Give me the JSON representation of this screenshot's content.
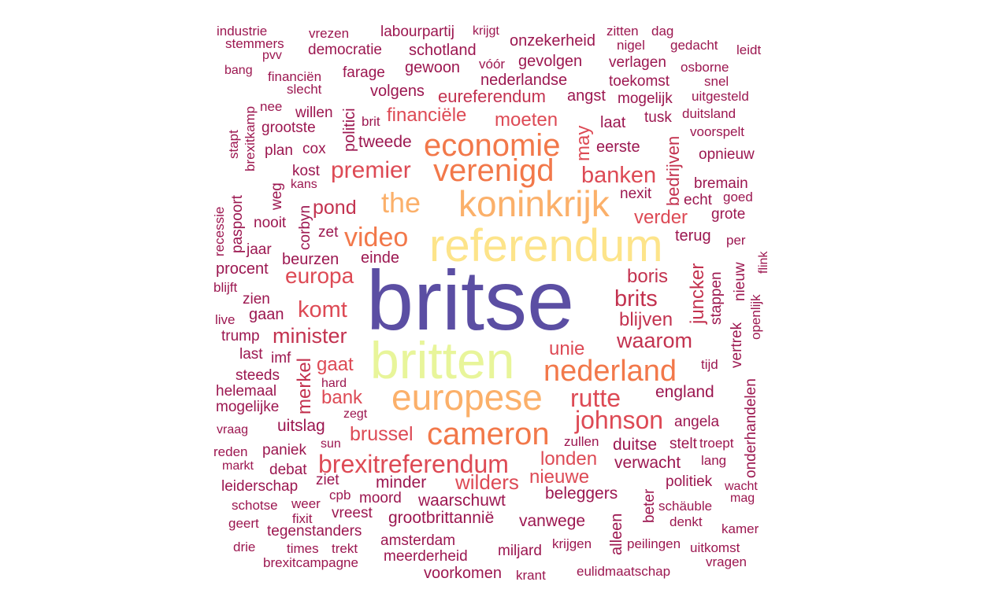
{
  "palette": {
    "purple": "#5b4ea3",
    "yellow": "#fde48a",
    "lime": "#e8f59a",
    "peach": "#fbb06a",
    "orange": "#f2784a",
    "red": "#dd4a55",
    "crimson": "#c3324f",
    "maroon": "#9c1750"
  },
  "words": [
    {
      "text": "britse",
      "color": "purple"
    },
    {
      "text": "referendum",
      "color": "yellow"
    },
    {
      "text": "britten",
      "color": "lime"
    },
    {
      "text": "koninkrijk",
      "color": "peach"
    },
    {
      "text": "europese",
      "color": "peach"
    },
    {
      "text": "economie",
      "color": "orange"
    },
    {
      "text": "verenigd",
      "color": "orange"
    },
    {
      "text": "cameron",
      "color": "orange"
    },
    {
      "text": "the",
      "color": "peach"
    },
    {
      "text": "nederland",
      "color": "orange"
    },
    {
      "text": "video",
      "color": "orange"
    },
    {
      "text": "premier",
      "color": "red"
    },
    {
      "text": "brexitreferendum",
      "color": "red"
    },
    {
      "text": "johnson",
      "color": "red"
    },
    {
      "text": "rutte",
      "color": "red"
    },
    {
      "text": "komt",
      "color": "red"
    },
    {
      "text": "europa",
      "color": "red"
    },
    {
      "text": "banken",
      "color": "red"
    },
    {
      "text": "minister",
      "color": "crimson"
    },
    {
      "text": "brits",
      "color": "crimson"
    },
    {
      "text": "waarom",
      "color": "crimson"
    },
    {
      "text": "wilders",
      "color": "red"
    },
    {
      "text": "brussel",
      "color": "red"
    },
    {
      "text": "pond",
      "color": "crimson"
    },
    {
      "text": "blijven",
      "color": "crimson"
    },
    {
      "text": "boris",
      "color": "crimson"
    },
    {
      "text": "financiële",
      "color": "red"
    },
    {
      "text": "moeten",
      "color": "red"
    },
    {
      "text": "gaat",
      "color": "red"
    },
    {
      "text": "bank",
      "color": "red"
    },
    {
      "text": "londen",
      "color": "red"
    },
    {
      "text": "unie",
      "color": "red"
    },
    {
      "text": "verder",
      "color": "red"
    },
    {
      "text": "nieuwe",
      "color": "red"
    },
    {
      "text": "may",
      "color": "red"
    },
    {
      "text": "merkel",
      "color": "crimson"
    },
    {
      "text": "juncker",
      "color": "crimson"
    },
    {
      "text": "bedrijven",
      "color": "crimson"
    },
    {
      "text": "eureferendum",
      "color": "crimson"
    },
    {
      "text": "uitslag",
      "color": "maroon"
    },
    {
      "text": "beleggers",
      "color": "maroon"
    },
    {
      "text": "waarschuwt",
      "color": "maroon"
    },
    {
      "text": "grootbrittannië",
      "color": "maroon"
    },
    {
      "text": "vanwege",
      "color": "maroon"
    },
    {
      "text": "england",
      "color": "maroon"
    },
    {
      "text": "duitse",
      "color": "maroon"
    },
    {
      "text": "verwacht",
      "color": "maroon"
    },
    {
      "text": "minder",
      "color": "maroon"
    },
    {
      "text": "beurzen",
      "color": "maroon"
    },
    {
      "text": "einde",
      "color": "maroon"
    },
    {
      "text": "tweede",
      "color": "maroon"
    },
    {
      "text": "volgens",
      "color": "maroon"
    },
    {
      "text": "angst",
      "color": "maroon"
    },
    {
      "text": "laat",
      "color": "maroon"
    },
    {
      "text": "eerste",
      "color": "maroon"
    },
    {
      "text": "terug",
      "color": "maroon"
    },
    {
      "text": "nexit",
      "color": "maroon"
    },
    {
      "text": "echt",
      "color": "maroon"
    },
    {
      "text": "bremain",
      "color": "maroon"
    },
    {
      "text": "grote",
      "color": "maroon"
    },
    {
      "text": "goed",
      "color": "maroon"
    },
    {
      "text": "opnieuw",
      "color": "maroon"
    },
    {
      "text": "voorspelt",
      "color": "maroon"
    },
    {
      "text": "duitsland",
      "color": "maroon"
    },
    {
      "text": "uitgesteld",
      "color": "maroon"
    },
    {
      "text": "mogelijk",
      "color": "maroon"
    },
    {
      "text": "tusk",
      "color": "maroon"
    },
    {
      "text": "toekomst",
      "color": "maroon"
    },
    {
      "text": "snel",
      "color": "maroon"
    },
    {
      "text": "osborne",
      "color": "maroon"
    },
    {
      "text": "verlagen",
      "color": "maroon"
    },
    {
      "text": "leidt",
      "color": "maroon"
    },
    {
      "text": "gedacht",
      "color": "maroon"
    },
    {
      "text": "dag",
      "color": "maroon"
    },
    {
      "text": "nigel",
      "color": "maroon"
    },
    {
      "text": "zitten",
      "color": "maroon"
    },
    {
      "text": "onzekerheid",
      "color": "maroon"
    },
    {
      "text": "gevolgen",
      "color": "maroon"
    },
    {
      "text": "nederlandse",
      "color": "maroon"
    },
    {
      "text": "vóór",
      "color": "maroon"
    },
    {
      "text": "krijgt",
      "color": "maroon"
    },
    {
      "text": "labourpartij",
      "color": "maroon"
    },
    {
      "text": "schotland",
      "color": "maroon"
    },
    {
      "text": "gewoon",
      "color": "maroon"
    },
    {
      "text": "vrezen",
      "color": "maroon"
    },
    {
      "text": "democratie",
      "color": "maroon"
    },
    {
      "text": "farage",
      "color": "maroon"
    },
    {
      "text": "industrie",
      "color": "maroon"
    },
    {
      "text": "stemmers",
      "color": "maroon"
    },
    {
      "text": "pvv",
      "color": "maroon"
    },
    {
      "text": "bang",
      "color": "maroon"
    },
    {
      "text": "financiën",
      "color": "maroon"
    },
    {
      "text": "slecht",
      "color": "maroon"
    },
    {
      "text": "willen",
      "color": "maroon"
    },
    {
      "text": "nee",
      "color": "maroon"
    },
    {
      "text": "brexitkamp",
      "color": "maroon"
    },
    {
      "text": "brit",
      "color": "maroon"
    },
    {
      "text": "politici",
      "color": "maroon"
    },
    {
      "text": "grootste",
      "color": "maroon"
    },
    {
      "text": "stapt",
      "color": "maroon"
    },
    {
      "text": "plan",
      "color": "maroon"
    },
    {
      "text": "cox",
      "color": "maroon"
    },
    {
      "text": "kost",
      "color": "maroon"
    },
    {
      "text": "kans",
      "color": "maroon"
    },
    {
      "text": "weg",
      "color": "maroon"
    },
    {
      "text": "corbyn",
      "color": "maroon"
    },
    {
      "text": "nooit",
      "color": "maroon"
    },
    {
      "text": "zet",
      "color": "maroon"
    },
    {
      "text": "paspoort",
      "color": "maroon"
    },
    {
      "text": "recessie",
      "color": "maroon"
    },
    {
      "text": "jaar",
      "color": "maroon"
    },
    {
      "text": "procent",
      "color": "maroon"
    },
    {
      "text": "blijft",
      "color": "maroon"
    },
    {
      "text": "zien",
      "color": "maroon"
    },
    {
      "text": "gaan",
      "color": "maroon"
    },
    {
      "text": "live",
      "color": "maroon"
    },
    {
      "text": "trump",
      "color": "maroon"
    },
    {
      "text": "last",
      "color": "maroon"
    },
    {
      "text": "imf",
      "color": "maroon"
    },
    {
      "text": "steeds",
      "color": "maroon"
    },
    {
      "text": "hard",
      "color": "maroon"
    },
    {
      "text": "helemaal",
      "color": "maroon"
    },
    {
      "text": "mogelijke",
      "color": "maroon"
    },
    {
      "text": "zegt",
      "color": "maroon"
    },
    {
      "text": "vraag",
      "color": "maroon"
    },
    {
      "text": "reden",
      "color": "maroon"
    },
    {
      "text": "paniek",
      "color": "maroon"
    },
    {
      "text": "sun",
      "color": "maroon"
    },
    {
      "text": "markt",
      "color": "maroon"
    },
    {
      "text": "debat",
      "color": "maroon"
    },
    {
      "text": "leiderschap",
      "color": "maroon"
    },
    {
      "text": "ziet",
      "color": "maroon"
    },
    {
      "text": "schotse",
      "color": "maroon"
    },
    {
      "text": "weer",
      "color": "maroon"
    },
    {
      "text": "cpb",
      "color": "maroon"
    },
    {
      "text": "moord",
      "color": "maroon"
    },
    {
      "text": "geert",
      "color": "maroon"
    },
    {
      "text": "fixit",
      "color": "maroon"
    },
    {
      "text": "vreest",
      "color": "maroon"
    },
    {
      "text": "tegenstanders",
      "color": "maroon"
    },
    {
      "text": "drie",
      "color": "maroon"
    },
    {
      "text": "times",
      "color": "maroon"
    },
    {
      "text": "trekt",
      "color": "maroon"
    },
    {
      "text": "amsterdam",
      "color": "maroon"
    },
    {
      "text": "brexitcampagne",
      "color": "maroon"
    },
    {
      "text": "meerderheid",
      "color": "maroon"
    },
    {
      "text": "voorkomen",
      "color": "maroon"
    },
    {
      "text": "krant",
      "color": "maroon"
    },
    {
      "text": "miljard",
      "color": "maroon"
    },
    {
      "text": "krijgen",
      "color": "maroon"
    },
    {
      "text": "alleen",
      "color": "maroon"
    },
    {
      "text": "eulidmaatschap",
      "color": "maroon"
    },
    {
      "text": "peilingen",
      "color": "maroon"
    },
    {
      "text": "uitkomst",
      "color": "maroon"
    },
    {
      "text": "vragen",
      "color": "maroon"
    },
    {
      "text": "kamer",
      "color": "maroon"
    },
    {
      "text": "denkt",
      "color": "maroon"
    },
    {
      "text": "schäuble",
      "color": "maroon"
    },
    {
      "text": "beter",
      "color": "maroon"
    },
    {
      "text": "mag",
      "color": "maroon"
    },
    {
      "text": "wacht",
      "color": "maroon"
    },
    {
      "text": "politiek",
      "color": "maroon"
    },
    {
      "text": "lang",
      "color": "maroon"
    },
    {
      "text": "onderhandelen",
      "color": "maroon"
    },
    {
      "text": "stelt",
      "color": "maroon"
    },
    {
      "text": "troept",
      "color": "maroon"
    },
    {
      "text": "zullen",
      "color": "maroon"
    },
    {
      "text": "angela",
      "color": "maroon"
    },
    {
      "text": "tijd",
      "color": "maroon"
    },
    {
      "text": "vertrek",
      "color": "maroon"
    },
    {
      "text": "nieuw",
      "color": "maroon"
    },
    {
      "text": "openlijk",
      "color": "maroon"
    },
    {
      "text": "stappen",
      "color": "maroon"
    },
    {
      "text": "per",
      "color": "maroon"
    },
    {
      "text": "flink",
      "color": "maroon"
    }
  ]
}
